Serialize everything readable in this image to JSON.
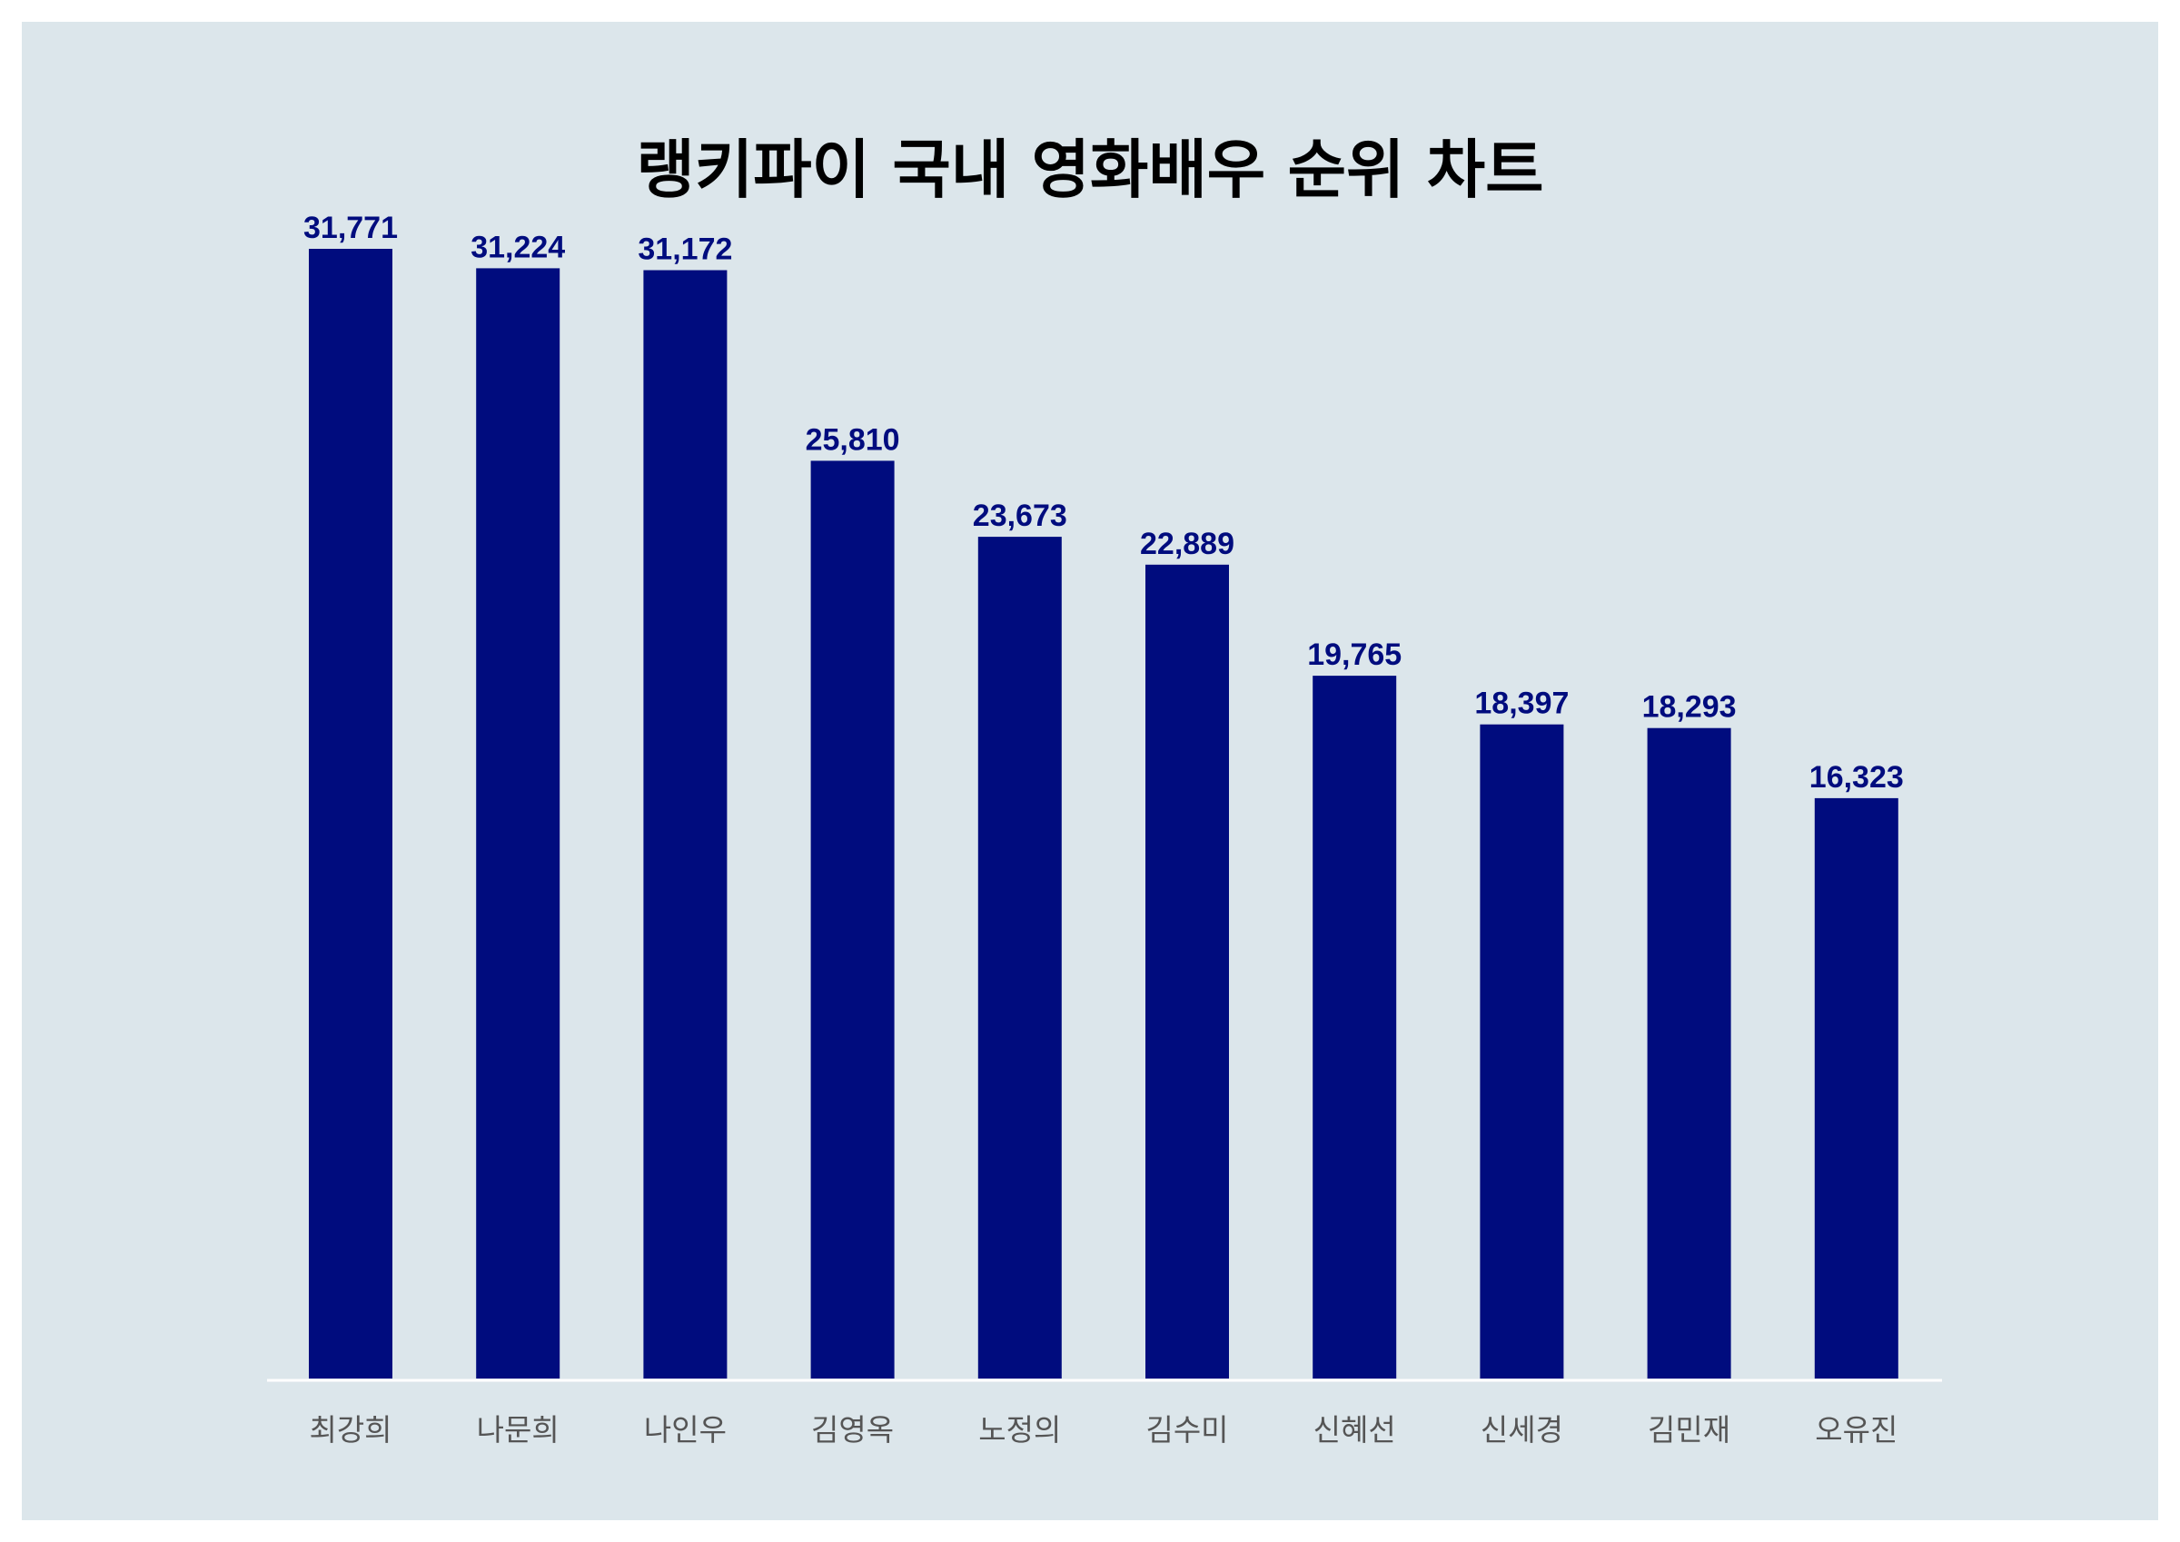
{
  "chart_data": {
    "type": "bar",
    "title": "랭키파이 국내 영화배우 순위 차트",
    "categories": [
      "최강희",
      "나문희",
      "나인우",
      "김영옥",
      "노정의",
      "김수미",
      "신혜선",
      "신세경",
      "김민재",
      "오유진"
    ],
    "values": [
      31771,
      31224,
      31172,
      25810,
      23673,
      22889,
      19765,
      18397,
      18293,
      16323
    ],
    "value_labels": [
      "31,771",
      "31,224",
      "31,172",
      "25,810",
      "23,673",
      "22,889",
      "19,765",
      "18,397",
      "18,293",
      "16,323"
    ],
    "xlabel": "",
    "ylabel": "",
    "ylim": [
      0,
      31771
    ],
    "grid": false,
    "legend": "none",
    "colors": {
      "bar": "#000c7e",
      "value_label": "#000c7e",
      "category_label": "#555555",
      "axis_line": "#ffffff",
      "background": "#dce6eb"
    }
  }
}
